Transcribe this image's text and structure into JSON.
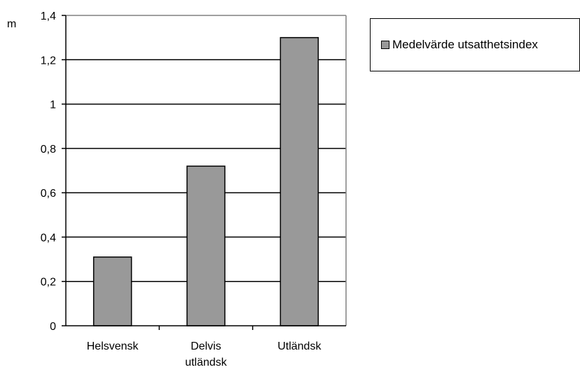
{
  "chart_data": {
    "type": "bar",
    "ylabel": "m",
    "categories": [
      [
        "Helsvensk"
      ],
      [
        "Delvis",
        "utländsk"
      ],
      [
        "Utländsk"
      ]
    ],
    "series": [
      {
        "name": "Medelvärde utsatthetsindex",
        "values": [
          0.31,
          0.72,
          1.3
        ],
        "color": "#999999"
      }
    ],
    "ylim": [
      0,
      1.4
    ],
    "yticks": [
      "0",
      "0,2",
      "0,4",
      "0,6",
      "0,8",
      "1",
      "1,2",
      "1,4"
    ],
    "grid": true,
    "legend_position": "top-right"
  }
}
